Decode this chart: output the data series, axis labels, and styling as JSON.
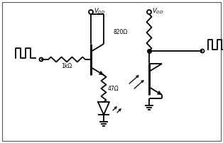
{
  "bg_color": "#ffffff",
  "border_color": "#555555",
  "line_color": "#000000",
  "fig_width": 3.14,
  "fig_height": 2.02,
  "dpi": 100,
  "res1k_label": "1kΩ",
  "res47_label": "47Ω",
  "res820_label": "820Ω",
  "vdd_label": "V",
  "vdd_sub": "DD"
}
